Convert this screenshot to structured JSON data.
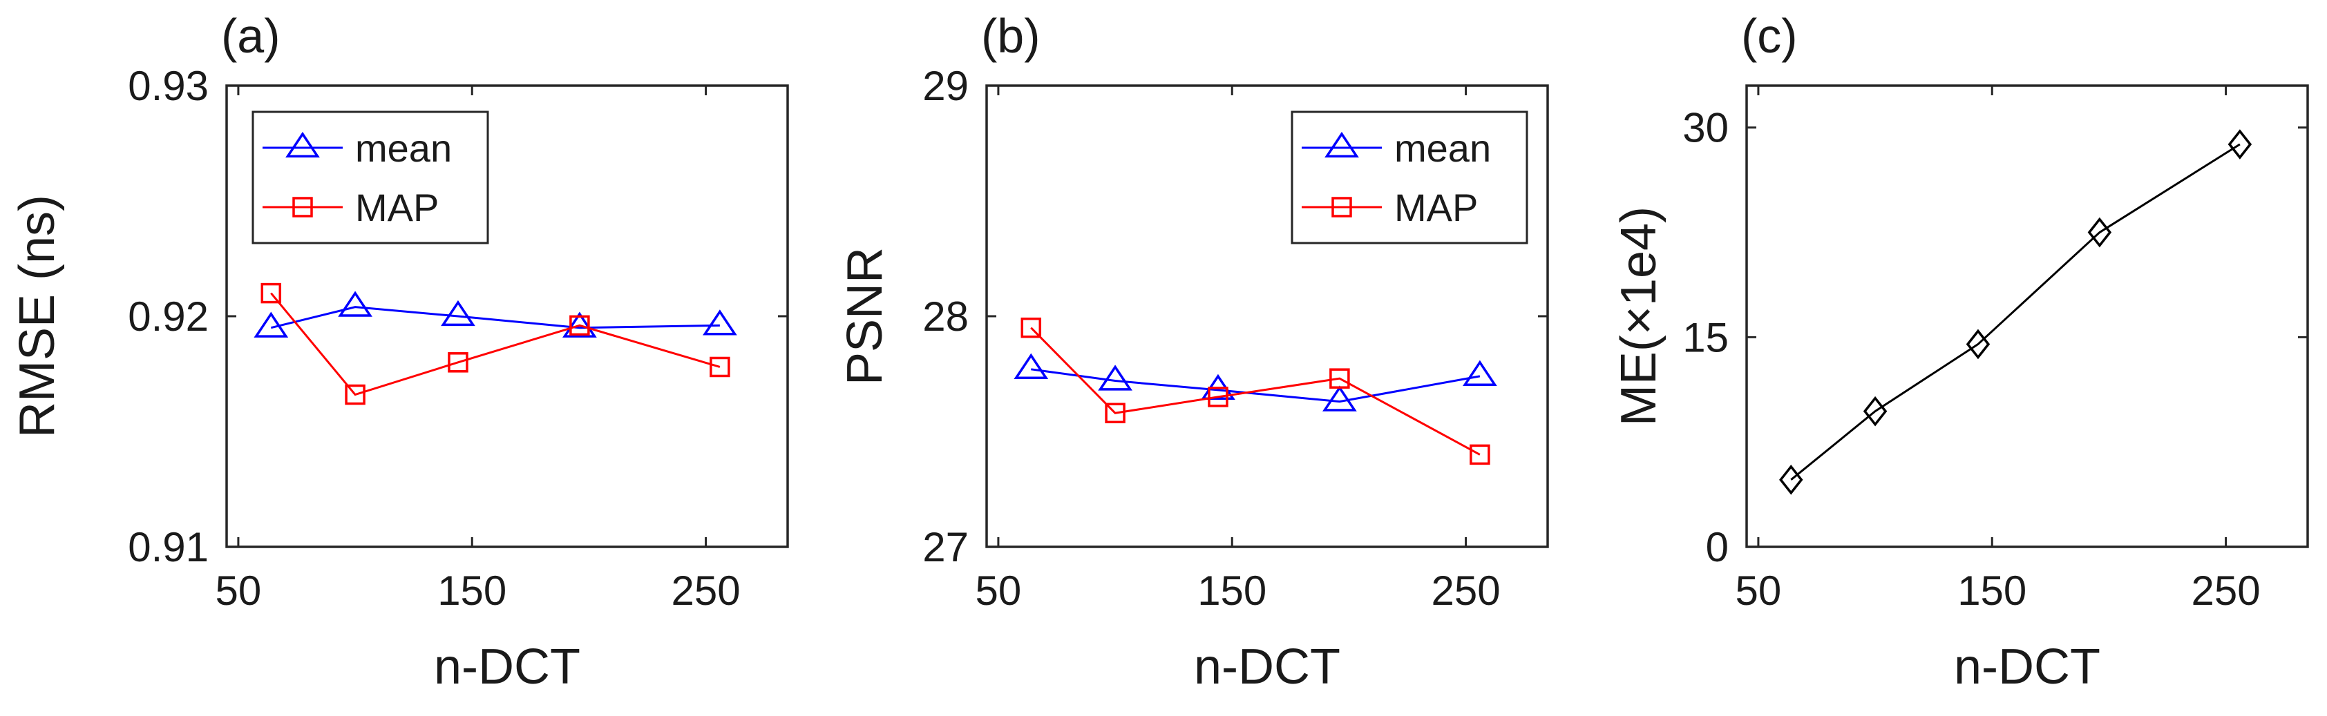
{
  "chart_data": [
    {
      "type": "line",
      "panel_label": "(a)",
      "xlabel": "n-DCT",
      "ylabel": "RMSE (ns)",
      "xlim": [
        45,
        285
      ],
      "ylim": [
        0.91,
        0.93
      ],
      "xticks": [
        50,
        150,
        250
      ],
      "xtick_labels": [
        "50",
        "150",
        "250"
      ],
      "yticks": [
        0.91,
        0.92,
        0.93
      ],
      "ytick_labels": [
        "0.91",
        "0.92",
        "0.93"
      ],
      "legend_position": "top-left",
      "series": [
        {
          "name": "mean",
          "color": "#0000ff",
          "marker": "triangle",
          "x": [
            64,
            100,
            144,
            196,
            256
          ],
          "y": [
            0.9195,
            0.9204,
            0.92,
            0.9195,
            0.9196
          ]
        },
        {
          "name": "MAP",
          "color": "#ff0000",
          "marker": "square",
          "x": [
            64,
            100,
            144,
            196,
            256
          ],
          "y": [
            0.921,
            0.9166,
            0.918,
            0.9196,
            0.9178
          ]
        }
      ]
    },
    {
      "type": "line",
      "panel_label": "(b)",
      "xlabel": "n-DCT",
      "ylabel": "PSNR",
      "xlim": [
        45,
        285
      ],
      "ylim": [
        27,
        29
      ],
      "xticks": [
        50,
        150,
        250
      ],
      "xtick_labels": [
        "50",
        "150",
        "250"
      ],
      "yticks": [
        27,
        28,
        29
      ],
      "ytick_labels": [
        "27",
        "28",
        "29"
      ],
      "legend_position": "top-right",
      "series": [
        {
          "name": "mean",
          "color": "#0000ff",
          "marker": "triangle",
          "x": [
            64,
            100,
            144,
            196,
            256
          ],
          "y": [
            27.77,
            27.72,
            27.68,
            27.63,
            27.74
          ]
        },
        {
          "name": "MAP",
          "color": "#ff0000",
          "marker": "square",
          "x": [
            64,
            100,
            144,
            196,
            256
          ],
          "y": [
            27.95,
            27.58,
            27.65,
            27.73,
            27.4
          ]
        }
      ]
    },
    {
      "type": "line",
      "panel_label": "(c)",
      "xlabel": "n-DCT",
      "ylabel": "ME(×1e4)",
      "xlim": [
        45,
        285
      ],
      "ylim": [
        0,
        33
      ],
      "xticks": [
        50,
        150,
        250
      ],
      "xtick_labels": [
        "50",
        "150",
        "250"
      ],
      "yticks": [
        0,
        15,
        30
      ],
      "ytick_labels": [
        "0",
        "15",
        "30"
      ],
      "legend_position": "none",
      "series": [
        {
          "color": "#000000",
          "marker": "diamond",
          "x": [
            64,
            100,
            144,
            196,
            256
          ],
          "y": [
            4.8,
            9.7,
            14.5,
            22.5,
            28.8
          ]
        }
      ]
    }
  ]
}
